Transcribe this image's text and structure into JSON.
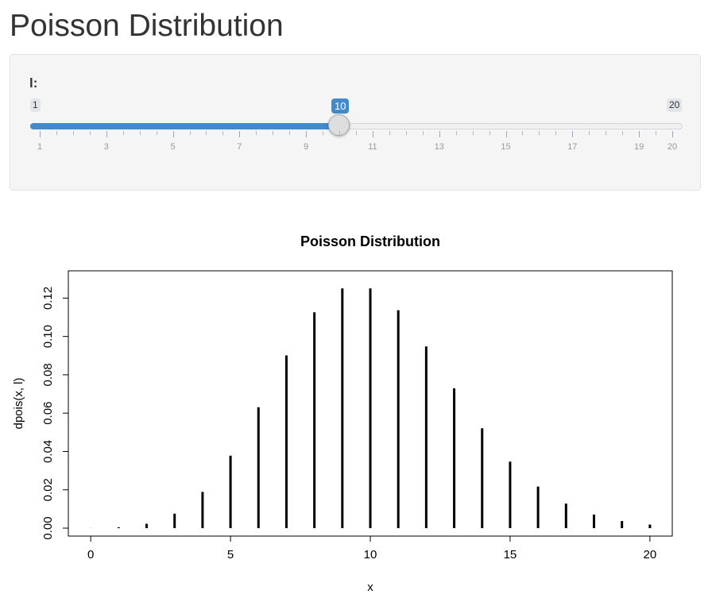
{
  "page": {
    "title": "Poisson Distribution"
  },
  "slider": {
    "label": "l:",
    "min": 1,
    "max": 20,
    "value": 10,
    "min_label": "1",
    "max_label": "20",
    "value_label": "10",
    "accent_color": "#428bca",
    "tick_labels": [
      "1",
      "3",
      "5",
      "7",
      "9",
      "11",
      "13",
      "15",
      "17",
      "19",
      "20"
    ]
  },
  "chart_data": {
    "type": "bar",
    "style": "histogram-spikes",
    "title": "Poisson Distribution",
    "xlabel": "x",
    "ylabel": "dpois(x, l)",
    "x": [
      0,
      1,
      2,
      3,
      4,
      5,
      6,
      7,
      8,
      9,
      10,
      11,
      12,
      13,
      14,
      15,
      16,
      17,
      18,
      19,
      20
    ],
    "values": [
      4.54e-05,
      0.000454,
      0.00227,
      0.00757,
      0.0189,
      0.0378,
      0.0631,
      0.0901,
      0.1126,
      0.1251,
      0.1251,
      0.1137,
      0.0948,
      0.0729,
      0.0521,
      0.0347,
      0.0217,
      0.0128,
      0.00709,
      0.00373,
      0.00187
    ],
    "xlim": [
      -0.8,
      20.8
    ],
    "ylim": [
      0,
      0.1301
    ],
    "x_ticks": [
      "0",
      "5",
      "10",
      "15",
      "20"
    ],
    "x_tick_values": [
      0,
      5,
      10,
      15,
      20
    ],
    "y_ticks": [
      "0.00",
      "0.02",
      "0.04",
      "0.06",
      "0.08",
      "0.10",
      "0.12"
    ],
    "y_tick_values": [
      0,
      0.02,
      0.04,
      0.06,
      0.08,
      0.1,
      0.12
    ],
    "grid": false,
    "color": "#000000"
  }
}
